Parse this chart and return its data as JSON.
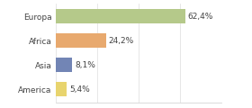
{
  "categories": [
    "Europa",
    "Africa",
    "Asia",
    "America"
  ],
  "values": [
    62.4,
    24.2,
    8.1,
    5.4
  ],
  "labels": [
    "62,4%",
    "24,2%",
    "8,1%",
    "5,4%"
  ],
  "colors": [
    "#b5c98a",
    "#e8a96e",
    "#7285b5",
    "#e8d46e"
  ],
  "xlim": [
    0,
    80
  ],
  "figsize": [
    2.8,
    1.2
  ],
  "dpi": 100,
  "background_color": "#ffffff",
  "bar_height": 0.6,
  "label_fontsize": 6.5,
  "tick_fontsize": 6.5
}
